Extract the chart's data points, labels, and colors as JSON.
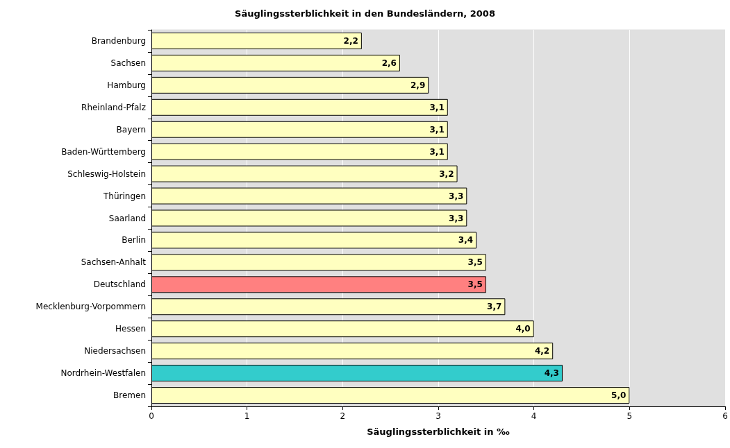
{
  "chart_data": {
    "type": "bar",
    "orientation": "horizontal",
    "title": "Säuglingssterblichkeit in den Bundesländern, 2008",
    "xlabel": "Säuglingssterblichkeit in ‰",
    "categories": [
      "Brandenburg",
      "Sachsen",
      "Hamburg",
      "Rheinland-Pfalz",
      "Bayern",
      "Baden-Württemberg",
      "Schleswig-Holstein",
      "Thüringen",
      "Saarland",
      "Berlin",
      "Sachsen-Anhalt",
      "Deutschland",
      "Mecklenburg-Vorpommern",
      "Hessen",
      "Niedersachsen",
      "Nordrhein-Westfalen",
      "Bremen"
    ],
    "values": [
      2.2,
      2.6,
      2.9,
      3.1,
      3.1,
      3.1,
      3.2,
      3.3,
      3.3,
      3.4,
      3.5,
      3.5,
      3.7,
      4.0,
      4.2,
      4.3,
      5.0
    ],
    "value_labels": [
      "2,2",
      "2,6",
      "2,9",
      "3,1",
      "3,1",
      "3,1",
      "3,2",
      "3,3",
      "3,3",
      "3,4",
      "3,5",
      "3,5",
      "3,7",
      "4,0",
      "4,2",
      "4,3",
      "5,0"
    ],
    "colors": [
      "#ffffc0",
      "#ffffc0",
      "#ffffc0",
      "#ffffc0",
      "#ffffc0",
      "#ffffc0",
      "#ffffc0",
      "#ffffc0",
      "#ffffc0",
      "#ffffc0",
      "#ffffc0",
      "#ff8080",
      "#ffffc0",
      "#ffffc0",
      "#ffffc0",
      "#33cccc",
      "#ffffc0"
    ],
    "xlim": [
      0,
      6
    ],
    "xticks": [
      0,
      1,
      2,
      3,
      4,
      5,
      6
    ],
    "grid": "x"
  }
}
